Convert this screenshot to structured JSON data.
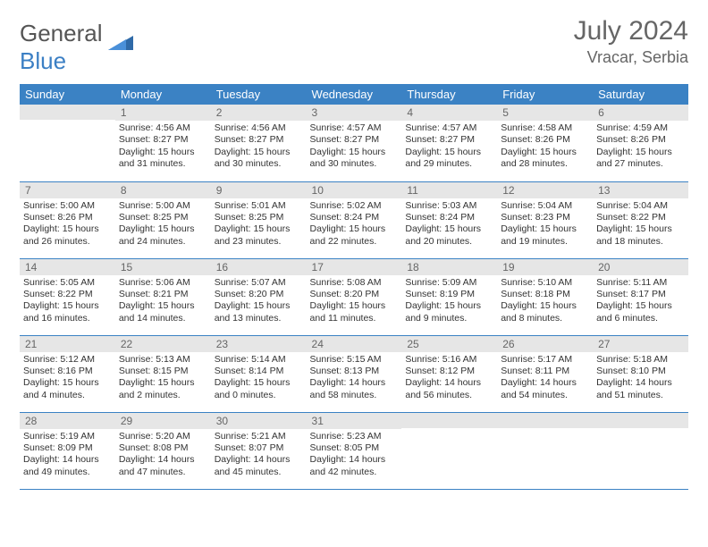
{
  "brand": {
    "word1": "General",
    "word2": "Blue"
  },
  "title": "July 2024",
  "location": "Vracar, Serbia",
  "colors": {
    "header_bg": "#3b82c4",
    "daynum_bg": "#e6e6e6",
    "rule": "#3b82c4"
  },
  "daynames": [
    "Sunday",
    "Monday",
    "Tuesday",
    "Wednesday",
    "Thursday",
    "Friday",
    "Saturday"
  ],
  "weeks": [
    [
      {
        "n": "",
        "lines": [
          "",
          "",
          "",
          ""
        ]
      },
      {
        "n": "1",
        "lines": [
          "Sunrise: 4:56 AM",
          "Sunset: 8:27 PM",
          "Daylight: 15 hours",
          "and 31 minutes."
        ]
      },
      {
        "n": "2",
        "lines": [
          "Sunrise: 4:56 AM",
          "Sunset: 8:27 PM",
          "Daylight: 15 hours",
          "and 30 minutes."
        ]
      },
      {
        "n": "3",
        "lines": [
          "Sunrise: 4:57 AM",
          "Sunset: 8:27 PM",
          "Daylight: 15 hours",
          "and 30 minutes."
        ]
      },
      {
        "n": "4",
        "lines": [
          "Sunrise: 4:57 AM",
          "Sunset: 8:27 PM",
          "Daylight: 15 hours",
          "and 29 minutes."
        ]
      },
      {
        "n": "5",
        "lines": [
          "Sunrise: 4:58 AM",
          "Sunset: 8:26 PM",
          "Daylight: 15 hours",
          "and 28 minutes."
        ]
      },
      {
        "n": "6",
        "lines": [
          "Sunrise: 4:59 AM",
          "Sunset: 8:26 PM",
          "Daylight: 15 hours",
          "and 27 minutes."
        ]
      }
    ],
    [
      {
        "n": "7",
        "lines": [
          "Sunrise: 5:00 AM",
          "Sunset: 8:26 PM",
          "Daylight: 15 hours",
          "and 26 minutes."
        ]
      },
      {
        "n": "8",
        "lines": [
          "Sunrise: 5:00 AM",
          "Sunset: 8:25 PM",
          "Daylight: 15 hours",
          "and 24 minutes."
        ]
      },
      {
        "n": "9",
        "lines": [
          "Sunrise: 5:01 AM",
          "Sunset: 8:25 PM",
          "Daylight: 15 hours",
          "and 23 minutes."
        ]
      },
      {
        "n": "10",
        "lines": [
          "Sunrise: 5:02 AM",
          "Sunset: 8:24 PM",
          "Daylight: 15 hours",
          "and 22 minutes."
        ]
      },
      {
        "n": "11",
        "lines": [
          "Sunrise: 5:03 AM",
          "Sunset: 8:24 PM",
          "Daylight: 15 hours",
          "and 20 minutes."
        ]
      },
      {
        "n": "12",
        "lines": [
          "Sunrise: 5:04 AM",
          "Sunset: 8:23 PM",
          "Daylight: 15 hours",
          "and 19 minutes."
        ]
      },
      {
        "n": "13",
        "lines": [
          "Sunrise: 5:04 AM",
          "Sunset: 8:22 PM",
          "Daylight: 15 hours",
          "and 18 minutes."
        ]
      }
    ],
    [
      {
        "n": "14",
        "lines": [
          "Sunrise: 5:05 AM",
          "Sunset: 8:22 PM",
          "Daylight: 15 hours",
          "and 16 minutes."
        ]
      },
      {
        "n": "15",
        "lines": [
          "Sunrise: 5:06 AM",
          "Sunset: 8:21 PM",
          "Daylight: 15 hours",
          "and 14 minutes."
        ]
      },
      {
        "n": "16",
        "lines": [
          "Sunrise: 5:07 AM",
          "Sunset: 8:20 PM",
          "Daylight: 15 hours",
          "and 13 minutes."
        ]
      },
      {
        "n": "17",
        "lines": [
          "Sunrise: 5:08 AM",
          "Sunset: 8:20 PM",
          "Daylight: 15 hours",
          "and 11 minutes."
        ]
      },
      {
        "n": "18",
        "lines": [
          "Sunrise: 5:09 AM",
          "Sunset: 8:19 PM",
          "Daylight: 15 hours",
          "and 9 minutes."
        ]
      },
      {
        "n": "19",
        "lines": [
          "Sunrise: 5:10 AM",
          "Sunset: 8:18 PM",
          "Daylight: 15 hours",
          "and 8 minutes."
        ]
      },
      {
        "n": "20",
        "lines": [
          "Sunrise: 5:11 AM",
          "Sunset: 8:17 PM",
          "Daylight: 15 hours",
          "and 6 minutes."
        ]
      }
    ],
    [
      {
        "n": "21",
        "lines": [
          "Sunrise: 5:12 AM",
          "Sunset: 8:16 PM",
          "Daylight: 15 hours",
          "and 4 minutes."
        ]
      },
      {
        "n": "22",
        "lines": [
          "Sunrise: 5:13 AM",
          "Sunset: 8:15 PM",
          "Daylight: 15 hours",
          "and 2 minutes."
        ]
      },
      {
        "n": "23",
        "lines": [
          "Sunrise: 5:14 AM",
          "Sunset: 8:14 PM",
          "Daylight: 15 hours",
          "and 0 minutes."
        ]
      },
      {
        "n": "24",
        "lines": [
          "Sunrise: 5:15 AM",
          "Sunset: 8:13 PM",
          "Daylight: 14 hours",
          "and 58 minutes."
        ]
      },
      {
        "n": "25",
        "lines": [
          "Sunrise: 5:16 AM",
          "Sunset: 8:12 PM",
          "Daylight: 14 hours",
          "and 56 minutes."
        ]
      },
      {
        "n": "26",
        "lines": [
          "Sunrise: 5:17 AM",
          "Sunset: 8:11 PM",
          "Daylight: 14 hours",
          "and 54 minutes."
        ]
      },
      {
        "n": "27",
        "lines": [
          "Sunrise: 5:18 AM",
          "Sunset: 8:10 PM",
          "Daylight: 14 hours",
          "and 51 minutes."
        ]
      }
    ],
    [
      {
        "n": "28",
        "lines": [
          "Sunrise: 5:19 AM",
          "Sunset: 8:09 PM",
          "Daylight: 14 hours",
          "and 49 minutes."
        ]
      },
      {
        "n": "29",
        "lines": [
          "Sunrise: 5:20 AM",
          "Sunset: 8:08 PM",
          "Daylight: 14 hours",
          "and 47 minutes."
        ]
      },
      {
        "n": "30",
        "lines": [
          "Sunrise: 5:21 AM",
          "Sunset: 8:07 PM",
          "Daylight: 14 hours",
          "and 45 minutes."
        ]
      },
      {
        "n": "31",
        "lines": [
          "Sunrise: 5:23 AM",
          "Sunset: 8:05 PM",
          "Daylight: 14 hours",
          "and 42 minutes."
        ]
      },
      {
        "n": "",
        "lines": [
          "",
          "",
          "",
          ""
        ]
      },
      {
        "n": "",
        "lines": [
          "",
          "",
          "",
          ""
        ]
      },
      {
        "n": "",
        "lines": [
          "",
          "",
          "",
          ""
        ]
      }
    ]
  ]
}
